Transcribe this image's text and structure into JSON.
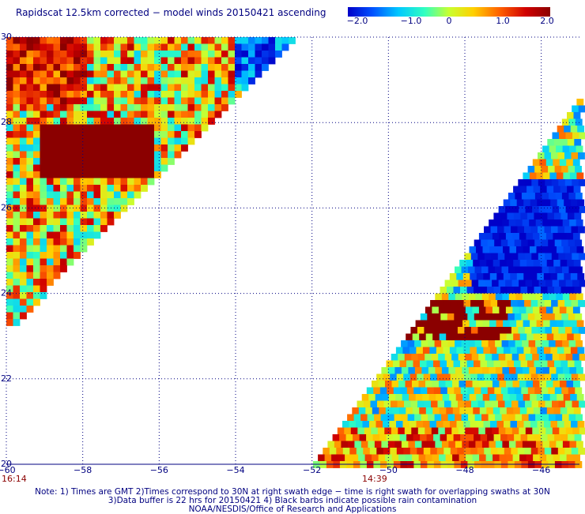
{
  "title": "Rapidscat 12.5km corrected − model winds 20150421 ascending",
  "colorbar": {
    "labels": [
      "−2.0",
      "−1.0",
      "0",
      "1.0",
      "2.0"
    ],
    "values": [
      -2.0,
      -1.0,
      0,
      1.0,
      2.0
    ],
    "colors": [
      "#0000c8",
      "#0050ff",
      "#00c8ff",
      "#30ffc0",
      "#c8ff30",
      "#ffd000",
      "#ff6000",
      "#d00000",
      "#8b0000"
    ]
  },
  "map": {
    "lon_range": [
      -60,
      -45
    ],
    "lat_range": [
      20,
      30
    ],
    "x_ticks": [
      {
        "value": -60,
        "label": "−60"
      },
      {
        "value": -58,
        "label": "−58"
      },
      {
        "value": -56,
        "label": "−56"
      },
      {
        "value": -54,
        "label": "−54"
      },
      {
        "value": -52,
        "label": "−52"
      },
      {
        "value": -50,
        "label": "−50"
      },
      {
        "value": -48,
        "label": "−48"
      },
      {
        "value": -46,
        "label": "−46"
      }
    ],
    "y_ticks": [
      {
        "value": 30,
        "label": "30"
      },
      {
        "value": 28,
        "label": "28"
      },
      {
        "value": 26,
        "label": "26"
      },
      {
        "value": 24,
        "label": "24"
      },
      {
        "value": 22,
        "label": "22"
      },
      {
        "value": 20,
        "label": "20"
      }
    ]
  },
  "swath_times": [
    {
      "label": "16:14",
      "lon": -60
    },
    {
      "label": "14:39",
      "lon": -50.7
    }
  ],
  "notes": [
    "Note: 1) Times are GMT 2)Times correspond to 30N at right swath edge − time is right swath for overlapping swaths at 30N",
    "3)Data buffer is 22 hrs for 20150421 4) Black barbs indicate possible rain contamination",
    "NOAA/NESDIS/Office of Research and Applications"
  ]
}
